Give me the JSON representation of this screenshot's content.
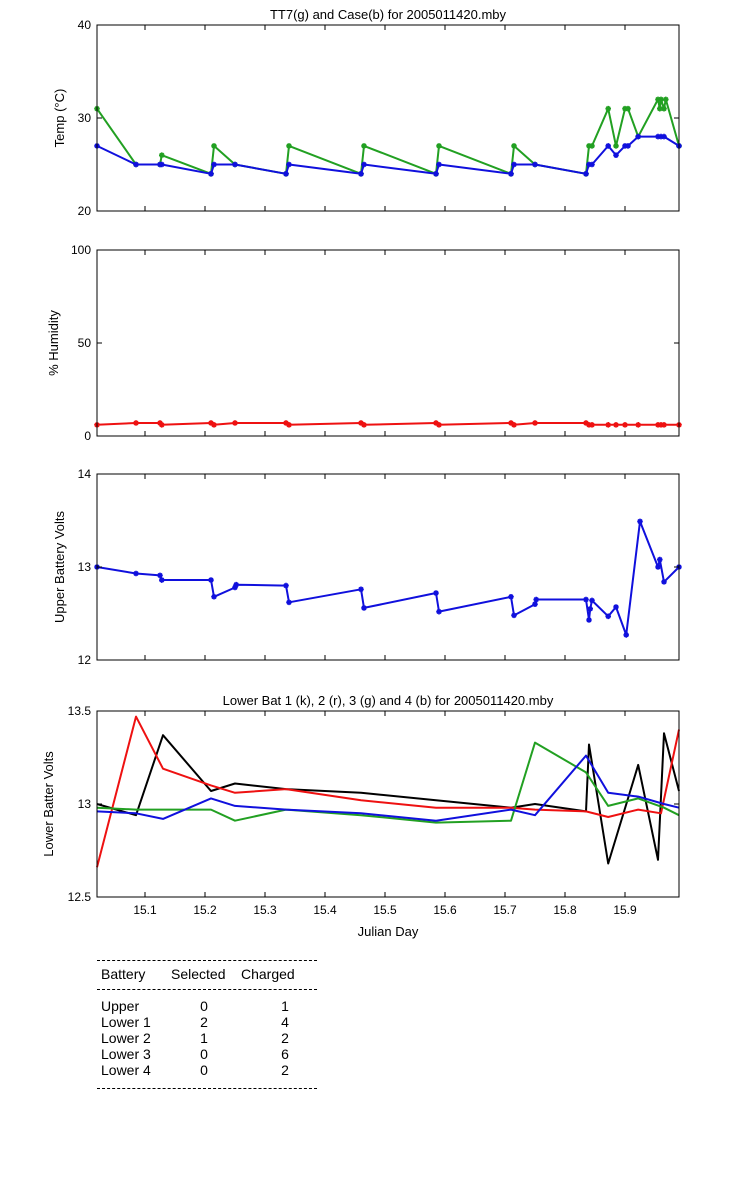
{
  "chart_data": [
    {
      "type": "line",
      "title": "TT7(g) and Case(b) for 2005011420.mby",
      "xlabel": "",
      "ylabel": "Temp  (°C)",
      "xlim": [
        15.02,
        15.99
      ],
      "ylim": [
        20,
        40
      ],
      "yticks": [
        20,
        30,
        40
      ],
      "xticks": [
        15.1,
        15.2,
        15.3,
        15.4,
        15.5,
        15.6,
        15.7,
        15.8,
        15.9
      ],
      "show_xtick_labels": false,
      "series": [
        {
          "color": "#22a022",
          "marker": "star",
          "x": [
            15.02,
            15.085,
            15.125,
            15.128,
            15.21,
            15.215,
            15.25,
            15.335,
            15.34,
            15.46,
            15.465,
            15.585,
            15.59,
            15.71,
            15.715,
            15.75,
            15.835,
            15.84,
            15.845,
            15.872,
            15.885,
            15.9,
            15.905,
            15.922,
            15.955,
            15.958,
            15.96,
            15.965,
            15.968,
            15.99
          ],
          "y": [
            31,
            25,
            25,
            26,
            24,
            27,
            25,
            24,
            27,
            24,
            27,
            24,
            27,
            24,
            27,
            25,
            24,
            27,
            27,
            31,
            27,
            31,
            31,
            28,
            32,
            31,
            32,
            31,
            32,
            27
          ]
        },
        {
          "color": "#1010dd",
          "marker": "star",
          "x": [
            15.02,
            15.085,
            15.125,
            15.128,
            15.21,
            15.215,
            15.25,
            15.335,
            15.34,
            15.46,
            15.465,
            15.585,
            15.59,
            15.71,
            15.715,
            15.75,
            15.835,
            15.84,
            15.845,
            15.872,
            15.885,
            15.9,
            15.905,
            15.922,
            15.955,
            15.96,
            15.965,
            15.99
          ],
          "y": [
            27,
            25,
            25,
            25,
            24,
            25,
            25,
            24,
            25,
            24,
            25,
            24,
            25,
            24,
            25,
            25,
            24,
            25,
            25,
            27,
            26,
            27,
            27,
            28,
            28,
            28,
            28,
            27
          ]
        }
      ]
    },
    {
      "type": "line",
      "title": "",
      "xlabel": "",
      "ylabel": "% Humidity",
      "xlim": [
        15.02,
        15.99
      ],
      "ylim": [
        0,
        100
      ],
      "yticks": [
        0,
        50,
        100
      ],
      "xticks": [
        15.1,
        15.2,
        15.3,
        15.4,
        15.5,
        15.6,
        15.7,
        15.8,
        15.9
      ],
      "show_xtick_labels": false,
      "series": [
        {
          "color": "#ee1111",
          "marker": "star",
          "x": [
            15.02,
            15.085,
            15.125,
            15.128,
            15.21,
            15.215,
            15.25,
            15.335,
            15.34,
            15.46,
            15.465,
            15.585,
            15.59,
            15.71,
            15.715,
            15.75,
            15.835,
            15.84,
            15.845,
            15.872,
            15.885,
            15.9,
            15.922,
            15.955,
            15.96,
            15.965,
            15.99
          ],
          "y": [
            6,
            7,
            7,
            6,
            7,
            6,
            7,
            7,
            6,
            7,
            6,
            7,
            6,
            7,
            6,
            7,
            7,
            6,
            6,
            6,
            6,
            6,
            6,
            6,
            6,
            6,
            6
          ]
        }
      ]
    },
    {
      "type": "line",
      "title": "",
      "xlabel": "",
      "ylabel": "Upper Battery Volts",
      "xlim": [
        15.02,
        15.99
      ],
      "ylim": [
        12,
        14
      ],
      "yticks": [
        12,
        13,
        14
      ],
      "xticks": [
        15.1,
        15.2,
        15.3,
        15.4,
        15.5,
        15.6,
        15.7,
        15.8,
        15.9
      ],
      "show_xtick_labels": false,
      "series": [
        {
          "color": "#1010dd",
          "marker": "star",
          "x": [
            15.02,
            15.085,
            15.125,
            15.128,
            15.21,
            15.215,
            15.25,
            15.252,
            15.335,
            15.34,
            15.46,
            15.465,
            15.585,
            15.59,
            15.71,
            15.715,
            15.75,
            15.752,
            15.835,
            15.84,
            15.842,
            15.845,
            15.872,
            15.885,
            15.902,
            15.925,
            15.955,
            15.958,
            15.965,
            15.99
          ],
          "y": [
            13.0,
            12.93,
            12.91,
            12.86,
            12.86,
            12.68,
            12.78,
            12.81,
            12.8,
            12.62,
            12.76,
            12.56,
            12.72,
            12.52,
            12.68,
            12.48,
            12.6,
            12.65,
            12.65,
            12.43,
            12.55,
            12.64,
            12.47,
            12.57,
            12.27,
            13.49,
            13.0,
            13.08,
            12.84,
            13.0
          ]
        }
      ]
    },
    {
      "type": "line",
      "title": "Lower Bat 1 (k), 2 (r), 3 (g) and 4 (b) for 2005011420.mby",
      "xlabel": "Julian Day",
      "ylabel": "Lower Batter Volts",
      "xlim": [
        15.02,
        15.99
      ],
      "ylim": [
        12.5,
        13.5
      ],
      "yticks": [
        12.5,
        13,
        13.5
      ],
      "yticklabels": [
        "12.5",
        "13",
        "13.5"
      ],
      "xticks": [
        15.1,
        15.2,
        15.3,
        15.4,
        15.5,
        15.6,
        15.7,
        15.8,
        15.9
      ],
      "xticklabels": [
        "15.1",
        "15.2",
        "15.3",
        "15.4",
        "15.5",
        "15.6",
        "15.7",
        "15.8",
        "15.9"
      ],
      "show_xtick_labels": true,
      "series": [
        {
          "color": "#000000",
          "marker": "none",
          "x": [
            15.02,
            15.085,
            15.13,
            15.21,
            15.25,
            15.335,
            15.46,
            15.585,
            15.71,
            15.75,
            15.835,
            15.84,
            15.872,
            15.922,
            15.955,
            15.965,
            15.99
          ],
          "y": [
            13.0,
            12.94,
            13.37,
            13.07,
            13.11,
            13.08,
            13.06,
            13.02,
            12.98,
            13.0,
            12.96,
            13.32,
            12.68,
            13.21,
            12.7,
            13.38,
            13.07
          ]
        },
        {
          "color": "#ee1111",
          "marker": "none",
          "x": [
            15.02,
            15.085,
            15.13,
            15.21,
            15.25,
            15.335,
            15.46,
            15.585,
            15.71,
            15.75,
            15.835,
            15.872,
            15.922,
            15.96,
            15.99
          ],
          "y": [
            12.66,
            13.47,
            13.19,
            13.1,
            13.06,
            13.08,
            13.02,
            12.98,
            12.98,
            12.97,
            12.96,
            12.93,
            12.97,
            12.95,
            13.4
          ]
        },
        {
          "color": "#22a022",
          "marker": "none",
          "x": [
            15.02,
            15.085,
            15.13,
            15.21,
            15.25,
            15.335,
            15.46,
            15.585,
            15.71,
            15.75,
            15.835,
            15.872,
            15.922,
            15.965,
            15.99
          ],
          "y": [
            12.98,
            12.97,
            12.97,
            12.97,
            12.91,
            12.97,
            12.94,
            12.9,
            12.91,
            13.33,
            13.17,
            12.99,
            13.03,
            12.98,
            12.94
          ]
        },
        {
          "color": "#1010dd",
          "marker": "none",
          "x": [
            15.02,
            15.085,
            15.13,
            15.21,
            15.25,
            15.335,
            15.46,
            15.585,
            15.71,
            15.75,
            15.835,
            15.872,
            15.922,
            15.965,
            15.99
          ],
          "y": [
            12.96,
            12.95,
            12.92,
            13.03,
            12.99,
            12.97,
            12.95,
            12.91,
            12.97,
            12.94,
            13.26,
            13.06,
            13.04,
            13.0,
            12.98
          ]
        }
      ]
    }
  ],
  "summary_table": {
    "headers": [
      "Battery",
      "Selected",
      "Charged"
    ],
    "rows": [
      [
        "Upper",
        "0",
        "1"
      ],
      [
        "Lower 1",
        "2",
        "4"
      ],
      [
        "Lower 2",
        "1",
        "2"
      ],
      [
        "Lower 3",
        "0",
        "6"
      ],
      [
        "Lower 4",
        "0",
        "2"
      ]
    ]
  }
}
